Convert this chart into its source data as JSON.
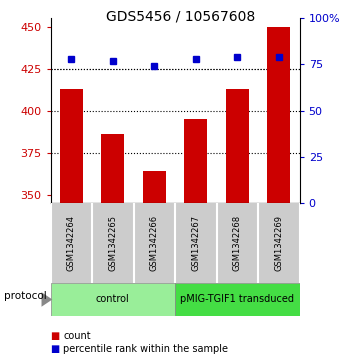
{
  "title": "GDS5456 / 10567608",
  "samples": [
    "GSM1342264",
    "GSM1342265",
    "GSM1342266",
    "GSM1342267",
    "GSM1342268",
    "GSM1342269"
  ],
  "counts": [
    413,
    386,
    364,
    395,
    413,
    450
  ],
  "percentiles": [
    78,
    77,
    74,
    78,
    79,
    79
  ],
  "ylim_left": [
    345,
    455
  ],
  "ylim_right": [
    0,
    100
  ],
  "yticks_left": [
    350,
    375,
    400,
    425,
    450
  ],
  "yticks_right": [
    0,
    25,
    50,
    75,
    100
  ],
  "ytick_labels_right": [
    "0",
    "25",
    "50",
    "75",
    "100%"
  ],
  "bar_color": "#cc0000",
  "dot_color": "#0000cc",
  "bar_width": 0.55,
  "grid_lines": [
    375,
    400,
    425
  ],
  "protocols": [
    {
      "label": "control",
      "samples": [
        0,
        1,
        2
      ],
      "color": "#99ee99"
    },
    {
      "label": "pMIG-TGIF1 transduced",
      "samples": [
        3,
        4,
        5
      ],
      "color": "#44dd44"
    }
  ],
  "left_tick_color": "#cc0000",
  "right_tick_color": "#0000cc",
  "background_color": "#ffffff",
  "sample_box_color": "#cccccc",
  "proto_border_color": "#888888"
}
